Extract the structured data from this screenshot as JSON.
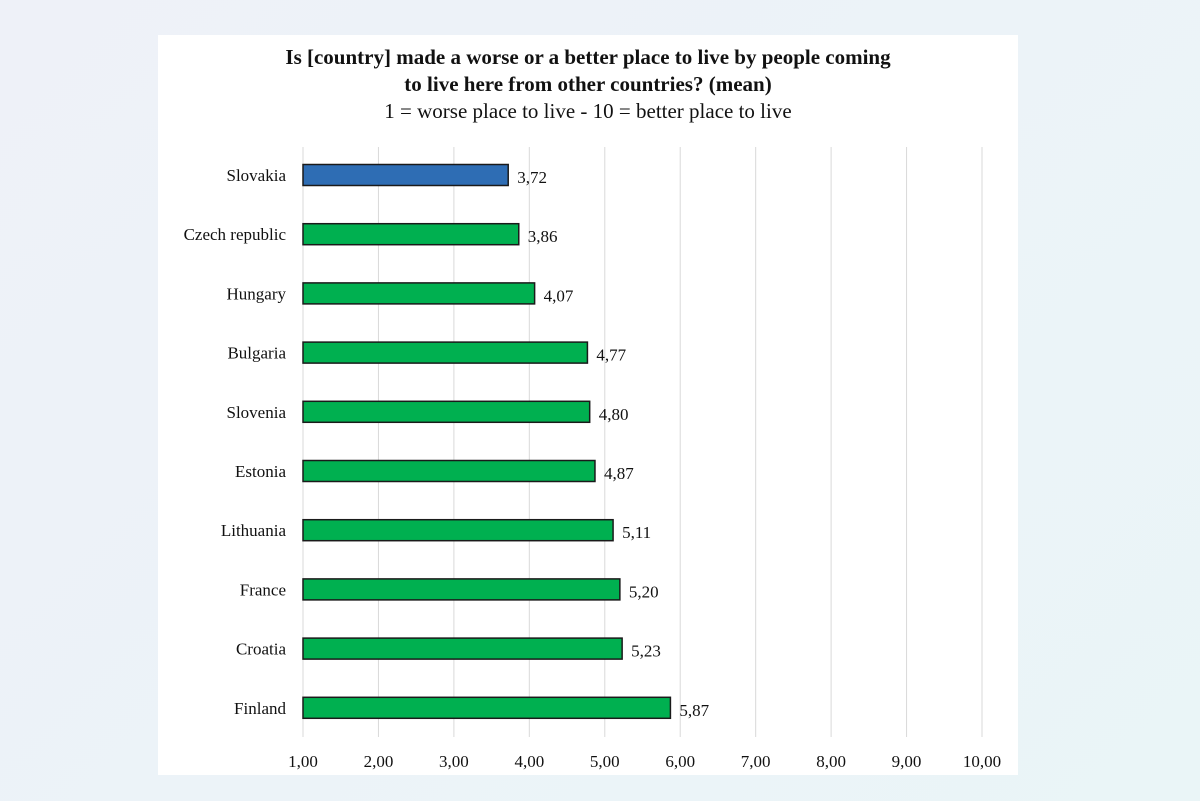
{
  "chart_data": {
    "type": "bar",
    "orientation": "horizontal",
    "title": "Is [country] made a worse or a better place to live by people coming to live here from other countries? (mean)",
    "title_lines": [
      "Is [country] made a worse or a better place to live by people coming",
      "to live here from other countries? (mean)"
    ],
    "subtitle": "1 =  worse place to live - 10 = better place to live",
    "categories": [
      "Slovakia",
      "Czech republic",
      "Hungary",
      "Bulgaria",
      "Slovenia",
      "Estonia",
      "Lithuania",
      "France",
      "Croatia",
      "Finland"
    ],
    "values": [
      3.72,
      3.86,
      4.07,
      4.77,
      4.8,
      4.87,
      5.11,
      5.2,
      5.23,
      5.87
    ],
    "value_labels": [
      "3,72",
      "3,86",
      "4,07",
      "4,77",
      "4,80",
      "4,87",
      "5,11",
      "5,20",
      "5,23",
      "5,87"
    ],
    "highlight": "Slovakia",
    "colors": {
      "highlight": "#2e6db4",
      "default": "#00b050",
      "border": "#1a1a1a",
      "grid": "#d9d9d9"
    },
    "xlim": [
      1,
      10
    ],
    "xticks": [
      1,
      2,
      3,
      4,
      5,
      6,
      7,
      8,
      9,
      10
    ],
    "xtick_labels": [
      "1,00",
      "2,00",
      "3,00",
      "4,00",
      "5,00",
      "6,00",
      "7,00",
      "8,00",
      "9,00",
      "10,00"
    ],
    "xlabel": "",
    "ylabel": "",
    "grid": true,
    "legend": "none"
  }
}
